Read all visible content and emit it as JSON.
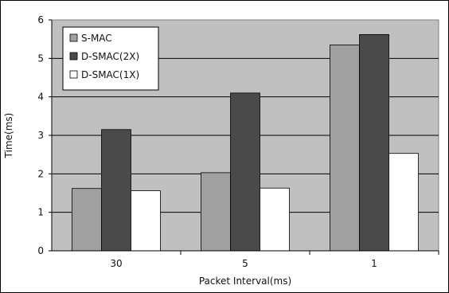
{
  "chart_data": {
    "type": "bar",
    "categories": [
      "30",
      "5",
      "1"
    ],
    "series": [
      {
        "name": "S-MAC",
        "values": [
          1.62,
          2.03,
          5.35
        ],
        "color": "#a0a0a0"
      },
      {
        "name": "D-SMAC(2X)",
        "values": [
          3.15,
          4.1,
          5.62
        ],
        "color": "#4a4a4a"
      },
      {
        "name": "D-SMAC(1X)",
        "values": [
          1.56,
          1.63,
          2.53
        ],
        "color": "#ffffff"
      }
    ],
    "xlabel": "Packet Interval(ms)",
    "ylabel": "Time(ms)",
    "ylim": [
      0,
      6
    ],
    "yticks": [
      "0",
      "1",
      "2",
      "3",
      "4",
      "5",
      "6"
    ],
    "grid": true,
    "legend_position": "top-left",
    "plot_background": "#c0c0c0"
  }
}
